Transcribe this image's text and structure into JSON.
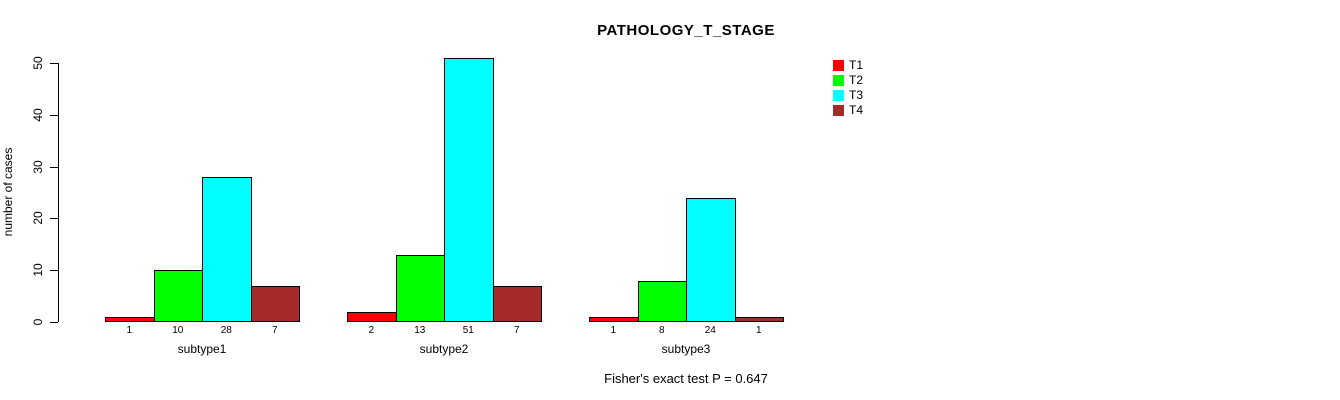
{
  "chart_data": {
    "type": "bar",
    "title": "PATHOLOGY_T_STAGE",
    "ylabel": "number of cases",
    "xlabel": "",
    "categories": [
      "subtype1",
      "subtype2",
      "subtype3"
    ],
    "series": [
      {
        "name": "T1",
        "color": "#FF0000",
        "values": [
          1,
          2,
          1
        ]
      },
      {
        "name": "T2",
        "color": "#00FF00",
        "values": [
          10,
          13,
          8
        ]
      },
      {
        "name": "T3",
        "color": "#00FFFF",
        "values": [
          28,
          51,
          24
        ]
      },
      {
        "name": "T4",
        "color": "#A52A2A",
        "values": [
          7,
          7,
          1
        ]
      }
    ],
    "yticks": [
      0,
      10,
      20,
      30,
      40,
      50
    ],
    "ylim": [
      0,
      50
    ],
    "grid": false,
    "bar_border_color": "#000000",
    "bar_value_labels_shown": true,
    "legend_position": "top-right",
    "legend_entries": [
      "T1",
      "T2",
      "T3",
      "T4"
    ],
    "annotation": "Fisher's exact test P = 0.647"
  }
}
